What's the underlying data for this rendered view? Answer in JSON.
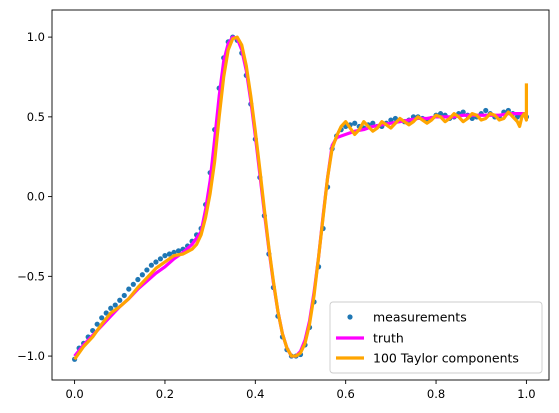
{
  "chart_data": {
    "type": "scatter",
    "title": "",
    "xlabel": "",
    "ylabel": "",
    "xlim": [
      -0.05,
      1.05
    ],
    "ylim": [
      -1.15,
      1.17
    ],
    "x_ticks": [
      0.0,
      0.2,
      0.4,
      0.6,
      0.8,
      1.0
    ],
    "x_tick_labels": [
      "0.0",
      "0.2",
      "0.4",
      "0.6",
      "0.8",
      "1.0"
    ],
    "y_ticks": [
      -1.0,
      -0.5,
      0.0,
      0.5,
      1.0
    ],
    "y_tick_labels": [
      "−1.0",
      "−0.5",
      "0.0",
      "0.5",
      "1.0"
    ],
    "grid": false,
    "legend_position": "lower-right",
    "series": [
      {
        "name": "measurements",
        "kind": "scatter",
        "color": "#1f77b4",
        "x": [
          0.0,
          0.01,
          0.02,
          0.03,
          0.04,
          0.05,
          0.06,
          0.07,
          0.08,
          0.09,
          0.1,
          0.11,
          0.12,
          0.13,
          0.14,
          0.15,
          0.16,
          0.17,
          0.18,
          0.19,
          0.2,
          0.21,
          0.22,
          0.23,
          0.24,
          0.25,
          0.26,
          0.27,
          0.28,
          0.29,
          0.3,
          0.31,
          0.32,
          0.33,
          0.34,
          0.35,
          0.36,
          0.37,
          0.38,
          0.39,
          0.4,
          0.41,
          0.42,
          0.43,
          0.44,
          0.45,
          0.46,
          0.47,
          0.48,
          0.49,
          0.5,
          0.51,
          0.52,
          0.53,
          0.54,
          0.55,
          0.56,
          0.57,
          0.58,
          0.59,
          0.6,
          0.61,
          0.62,
          0.63,
          0.64,
          0.65,
          0.66,
          0.67,
          0.68,
          0.69,
          0.7,
          0.71,
          0.72,
          0.73,
          0.74,
          0.75,
          0.76,
          0.77,
          0.78,
          0.79,
          0.8,
          0.81,
          0.82,
          0.83,
          0.84,
          0.85,
          0.86,
          0.87,
          0.88,
          0.89,
          0.9,
          0.91,
          0.92,
          0.93,
          0.94,
          0.95,
          0.96,
          0.97,
          0.98,
          0.99,
          1.0
        ],
        "y": [
          -1.02,
          -0.95,
          -0.92,
          -0.88,
          -0.84,
          -0.8,
          -0.76,
          -0.73,
          -0.7,
          -0.68,
          -0.65,
          -0.62,
          -0.58,
          -0.55,
          -0.52,
          -0.49,
          -0.46,
          -0.43,
          -0.41,
          -0.39,
          -0.37,
          -0.36,
          -0.35,
          -0.34,
          -0.33,
          -0.31,
          -0.28,
          -0.24,
          -0.2,
          -0.05,
          0.15,
          0.42,
          0.68,
          0.87,
          0.97,
          1.0,
          0.98,
          0.9,
          0.76,
          0.58,
          0.36,
          0.12,
          -0.12,
          -0.36,
          -0.57,
          -0.75,
          -0.88,
          -0.96,
          -1.0,
          -1.0,
          -0.99,
          -0.93,
          -0.82,
          -0.66,
          -0.44,
          -0.2,
          0.06,
          0.3,
          0.38,
          0.42,
          0.44,
          0.45,
          0.46,
          0.44,
          0.43,
          0.45,
          0.46,
          0.44,
          0.44,
          0.46,
          0.48,
          0.49,
          0.48,
          0.47,
          0.48,
          0.5,
          0.5,
          0.49,
          0.48,
          0.49,
          0.51,
          0.52,
          0.51,
          0.49,
          0.5,
          0.52,
          0.53,
          0.51,
          0.49,
          0.5,
          0.52,
          0.54,
          0.52,
          0.5,
          0.5,
          0.53,
          0.54,
          0.52,
          0.5,
          0.51,
          0.5
        ]
      },
      {
        "name": "truth",
        "kind": "line",
        "color": "#ff00ff",
        "x": [
          0.0,
          0.02,
          0.04,
          0.06,
          0.08,
          0.1,
          0.12,
          0.14,
          0.16,
          0.18,
          0.2,
          0.22,
          0.24,
          0.26,
          0.28,
          0.29,
          0.3,
          0.31,
          0.32,
          0.33,
          0.34,
          0.35,
          0.36,
          0.37,
          0.38,
          0.39,
          0.4,
          0.41,
          0.42,
          0.43,
          0.44,
          0.45,
          0.46,
          0.47,
          0.48,
          0.49,
          0.5,
          0.51,
          0.52,
          0.53,
          0.54,
          0.55,
          0.56,
          0.57,
          0.58,
          0.6,
          0.62,
          0.64,
          0.66,
          0.68,
          0.7,
          0.72,
          0.74,
          0.76,
          0.78,
          0.8,
          0.82,
          0.84,
          0.86,
          0.88,
          0.9,
          0.92,
          0.94,
          0.96,
          0.98,
          1.0
        ],
        "y": [
          -1.0,
          -0.93,
          -0.87,
          -0.81,
          -0.75,
          -0.69,
          -0.64,
          -0.58,
          -0.53,
          -0.48,
          -0.44,
          -0.39,
          -0.35,
          -0.3,
          -0.22,
          -0.08,
          0.1,
          0.36,
          0.63,
          0.85,
          0.96,
          1.0,
          0.99,
          0.92,
          0.79,
          0.6,
          0.38,
          0.14,
          -0.1,
          -0.33,
          -0.54,
          -0.72,
          -0.86,
          -0.95,
          -1.0,
          -1.0,
          -0.97,
          -0.9,
          -0.78,
          -0.6,
          -0.38,
          -0.12,
          0.12,
          0.32,
          0.37,
          0.39,
          0.41,
          0.42,
          0.44,
          0.45,
          0.46,
          0.47,
          0.48,
          0.49,
          0.49,
          0.5,
          0.5,
          0.5,
          0.51,
          0.51,
          0.51,
          0.51,
          0.51,
          0.52,
          0.52,
          0.52
        ]
      },
      {
        "name": "100 Taylor components",
        "kind": "line",
        "color": "#ffa500",
        "x": [
          0.0,
          0.02,
          0.04,
          0.06,
          0.08,
          0.1,
          0.12,
          0.14,
          0.16,
          0.18,
          0.2,
          0.22,
          0.24,
          0.26,
          0.27,
          0.28,
          0.29,
          0.3,
          0.31,
          0.32,
          0.33,
          0.34,
          0.35,
          0.36,
          0.37,
          0.38,
          0.39,
          0.4,
          0.41,
          0.42,
          0.43,
          0.44,
          0.45,
          0.46,
          0.47,
          0.48,
          0.49,
          0.5,
          0.51,
          0.52,
          0.53,
          0.54,
          0.55,
          0.56,
          0.57,
          0.58,
          0.59,
          0.6,
          0.61,
          0.62,
          0.63,
          0.64,
          0.65,
          0.66,
          0.67,
          0.68,
          0.69,
          0.7,
          0.71,
          0.72,
          0.73,
          0.74,
          0.75,
          0.76,
          0.77,
          0.78,
          0.79,
          0.8,
          0.81,
          0.82,
          0.83,
          0.84,
          0.85,
          0.86,
          0.87,
          0.88,
          0.89,
          0.9,
          0.91,
          0.92,
          0.93,
          0.94,
          0.95,
          0.96,
          0.97,
          0.98,
          0.985,
          0.99,
          0.995,
          1.0,
          1.0
        ],
        "y": [
          -1.02,
          -0.94,
          -0.88,
          -0.8,
          -0.73,
          -0.69,
          -0.64,
          -0.57,
          -0.51,
          -0.45,
          -0.41,
          -0.37,
          -0.36,
          -0.33,
          -0.3,
          -0.24,
          -0.13,
          0.02,
          0.22,
          0.5,
          0.75,
          0.92,
          0.99,
          1.0,
          0.95,
          0.82,
          0.63,
          0.41,
          0.17,
          -0.08,
          -0.32,
          -0.53,
          -0.72,
          -0.86,
          -0.95,
          -1.0,
          -1.0,
          -0.98,
          -0.92,
          -0.8,
          -0.62,
          -0.38,
          -0.13,
          0.12,
          0.3,
          0.38,
          0.44,
          0.47,
          0.43,
          0.39,
          0.42,
          0.47,
          0.44,
          0.41,
          0.43,
          0.47,
          0.45,
          0.43,
          0.46,
          0.49,
          0.47,
          0.45,
          0.47,
          0.5,
          0.48,
          0.46,
          0.48,
          0.51,
          0.5,
          0.47,
          0.49,
          0.52,
          0.5,
          0.47,
          0.49,
          0.52,
          0.51,
          0.48,
          0.49,
          0.52,
          0.51,
          0.48,
          0.49,
          0.53,
          0.5,
          0.47,
          0.44,
          0.5,
          0.52,
          0.48,
          0.71
        ]
      }
    ]
  }
}
